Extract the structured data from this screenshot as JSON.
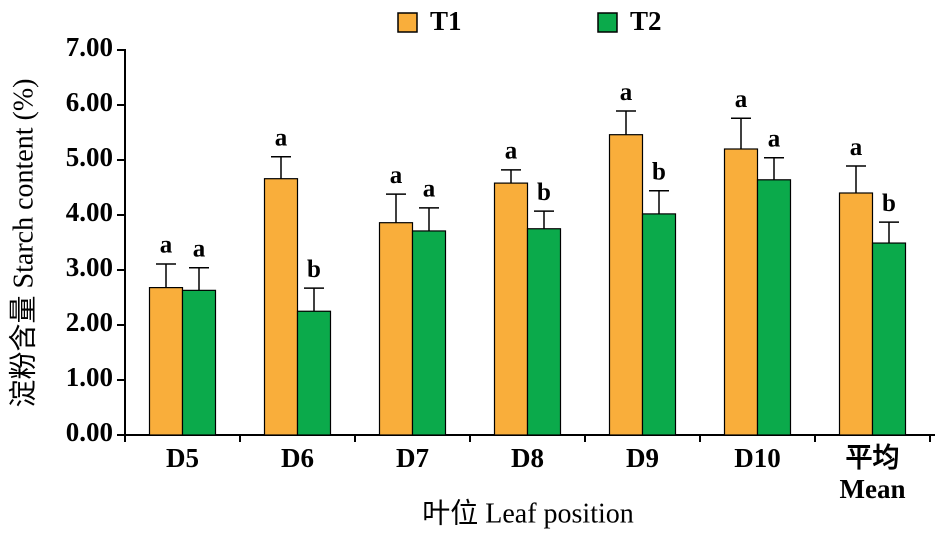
{
  "chart_data": {
    "type": "bar",
    "x_label": "叶位 Leaf position",
    "y_label": "淀粉含量 Starch content (%)",
    "categories": [
      "D5",
      "D6",
      "D7",
      "D8",
      "D9",
      "D10",
      "平均\nMean"
    ],
    "series": [
      {
        "name": "T1",
        "color": "#F9AE3B",
        "values": [
          2.68,
          4.66,
          3.86,
          4.58,
          5.46,
          5.2,
          4.4
        ],
        "errors": [
          0.43,
          0.4,
          0.52,
          0.24,
          0.43,
          0.56,
          0.49
        ],
        "letters": [
          "a",
          "a",
          "a",
          "a",
          "a",
          "a",
          "a"
        ]
      },
      {
        "name": "T2",
        "color": "#0BAA4B",
        "values": [
          2.63,
          2.25,
          3.71,
          3.75,
          4.02,
          4.64,
          3.49
        ],
        "errors": [
          0.41,
          0.42,
          0.42,
          0.32,
          0.42,
          0.4,
          0.38
        ],
        "letters": [
          "a",
          "b",
          "a",
          "b",
          "b",
          "a",
          "b"
        ]
      }
    ],
    "ylim": [
      0,
      7
    ],
    "yticks": [
      {
        "value": 0,
        "label": "0.00"
      },
      {
        "value": 1,
        "label": "1.00"
      },
      {
        "value": 2,
        "label": "2.00"
      },
      {
        "value": 3,
        "label": "3.00"
      },
      {
        "value": 4,
        "label": "4.00"
      },
      {
        "value": 5,
        "label": "5.00"
      },
      {
        "value": 6,
        "label": "6.00"
      },
      {
        "value": 7,
        "label": "7.00"
      }
    ],
    "grid": false,
    "legend": "top"
  }
}
